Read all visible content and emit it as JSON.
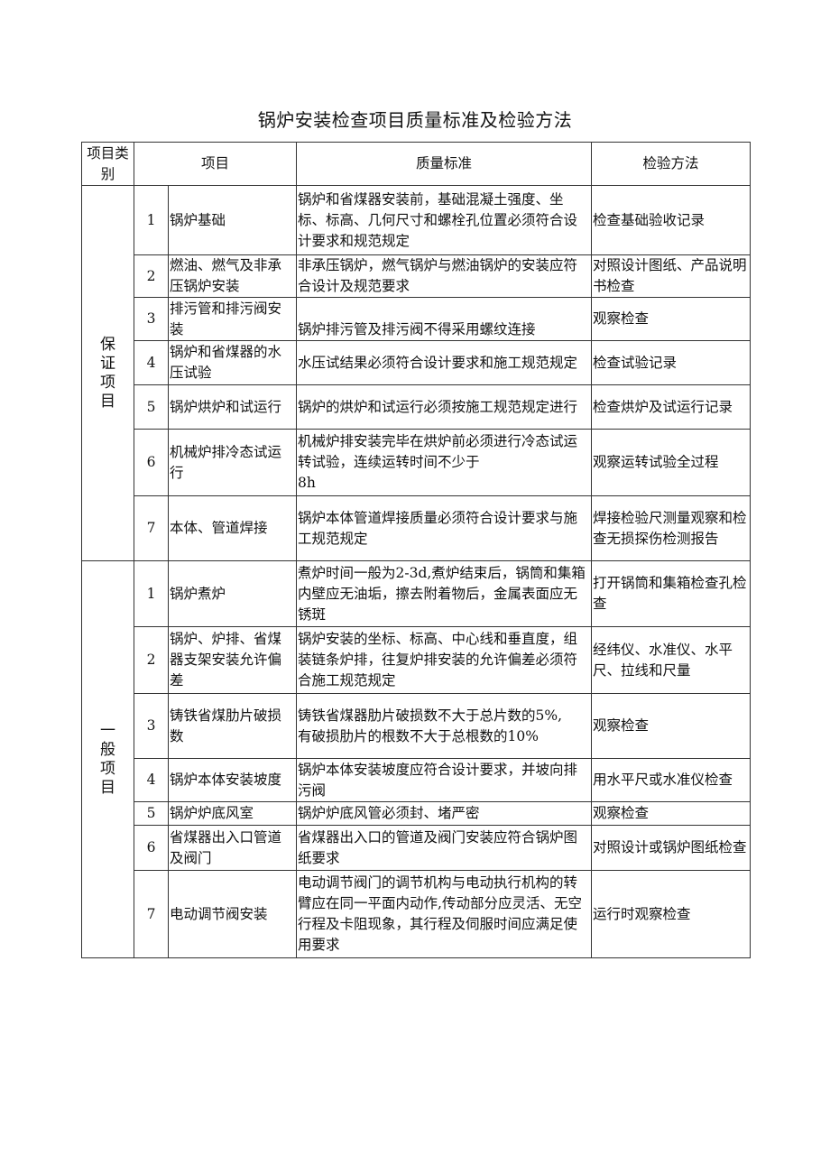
{
  "title": "锅炉安装检查项目质量标准及检验方法",
  "headers": {
    "category": "项目类别",
    "item": "项目",
    "standard": "质量标准",
    "method": "检验方法"
  },
  "groups": [
    {
      "label": "保证项目",
      "rows": [
        {
          "no": "1",
          "item": "锅炉基础",
          "standard": "锅炉和省煤器安装前，基础混凝土强度、坐标、标高、几何尺寸和螺栓孔位置必须符合设计要求和规范规定",
          "method": "检查基础验收记录"
        },
        {
          "no": "2",
          "item": "燃油、燃气及非承压锅炉安装",
          "standard": "非承压锅炉，燃气锅炉与燃油锅炉的安装应符合设计及规范要求",
          "method": "对照设计图纸、产品说明书检查"
        },
        {
          "no": "3",
          "item": "排污管和排污阀安装",
          "standard": "\n锅炉排污管及排污阀不得采用螺纹连接",
          "method": "观察检查"
        },
        {
          "no": "4",
          "item": "锅炉和省煤器的水压试验",
          "standard": "水压试结果必须符合设计要求和施工规范规定",
          "method": "检查试验记录"
        },
        {
          "no": "5",
          "item": "锅炉烘炉和试运行",
          "standard": "锅炉的烘炉和试运行必须按施工规范规定进行",
          "method": "检查烘炉及试运行记录"
        },
        {
          "no": "6",
          "item": "机械炉排冷态试运行",
          "standard": "机械炉排安装完毕在烘炉前必须进行冷态试运转试验，连续运转时间不少于\n8h",
          "method": "观察运转试验全过程"
        },
        {
          "no": "7",
          "item": "本体、管道焊接",
          "standard": "锅炉本体管道焊接质量必须符合设计要求与施工规范规定",
          "method": "焊接检验尺测量观察和检查无损探伤检测报告"
        }
      ]
    },
    {
      "label": "一般项目",
      "rows": [
        {
          "no": "1",
          "item": "锅炉煮炉",
          "standard": "煮炉时间一般为2-3d,煮炉结束后，锅筒和集箱内壁应无油垢，擦去附着物后，金属表面应无锈斑",
          "method": "打开锅筒和集箱检查孔检查"
        },
        {
          "no": "2",
          "item": "锅炉、炉排、省煤器支架安装允许偏差",
          "standard": "锅炉安装的坐标、标高、中心线和垂直度，组装链条炉排，往复炉排安装的允许偏差必须符合施工规范规定",
          "method": "经纬仪、水准仪、水平尺、拉线和尺量"
        },
        {
          "no": "3",
          "item": "铸铁省煤肋片破损数",
          "standard": "铸铁省煤器肋片破损数不大于总片数的5%,\n有破损肋片的根数不大于总根数的10%",
          "method": "观察检查"
        },
        {
          "no": "4",
          "item": "锅炉本体安装坡度",
          "standard": "锅炉本体安装坡度应符合设计要求，并坡向排污阀",
          "method": "用水平尺或水准仪检查"
        },
        {
          "no": "5",
          "item": "锅炉炉底风室",
          "standard": "锅炉炉底风管必须封、堵严密",
          "method": "观察检查"
        },
        {
          "no": "6",
          "item": "省煤器出入口管道及阀门",
          "standard": "省煤器出入口的管道及阀门安装应符合锅炉图纸要求",
          "method": "对照设计或锅炉图纸检查"
        },
        {
          "no": "7",
          "item": "电动调节阀安装",
          "standard": "电动调节阀门的调节机构与电动执行机构的转臂应在同一平面内动作,传动部分应灵活、无空行程及卡阻现象，其行程及伺服时间应满足使用要求",
          "method": "运行时观察检查"
        }
      ]
    }
  ]
}
